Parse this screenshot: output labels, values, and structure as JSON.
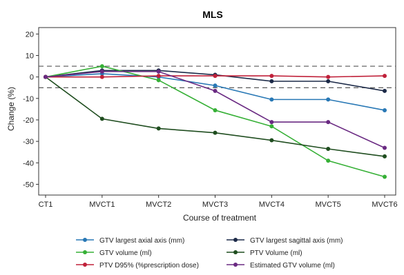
{
  "chart_data": {
    "type": "line",
    "title": "MLS",
    "xlabel": "Course of treatment",
    "ylabel": "Change (%)",
    "categories": [
      "CT1",
      "MVCT1",
      "MVCT2",
      "MVCT3",
      "MVCT4",
      "MVCT5",
      "MVCT6"
    ],
    "ylim": [
      -55,
      23
    ],
    "yticks": [
      20,
      10,
      0,
      -10,
      -20,
      -30,
      -40,
      -50
    ],
    "reference_lines": [
      5,
      -5
    ],
    "grid": false,
    "legend_position": "bottom",
    "series": [
      {
        "name": "GTV largest axial axis (mm)",
        "color": "#2878b5",
        "values": [
          0,
          1.5,
          0,
          -4,
          -10.5,
          -10.5,
          -15.5
        ]
      },
      {
        "name": "GTV largest sagittal axis (mm)",
        "color": "#1c2a48",
        "values": [
          0,
          3,
          3,
          1,
          -2,
          -2,
          -6.5
        ]
      },
      {
        "name": "GTV volume (ml)",
        "color": "#36b036",
        "values": [
          0,
          5,
          -1.5,
          -15.5,
          -23,
          -39,
          -46.5
        ]
      },
      {
        "name": "PTV Volume (ml)",
        "color": "#1f4d1f",
        "values": [
          0,
          -19.5,
          -24,
          -26,
          -29.5,
          -33.5,
          -37
        ]
      },
      {
        "name": "PTV D95% (%prescription dose)",
        "color": "#c0213a",
        "values": [
          0,
          0,
          0.5,
          0.5,
          0.5,
          0,
          0.5
        ]
      },
      {
        "name": "Estimated GTV volume (ml)",
        "color": "#6a2a82",
        "values": [
          0,
          2.5,
          2.5,
          -6.5,
          -21,
          -21,
          -33
        ]
      }
    ]
  }
}
